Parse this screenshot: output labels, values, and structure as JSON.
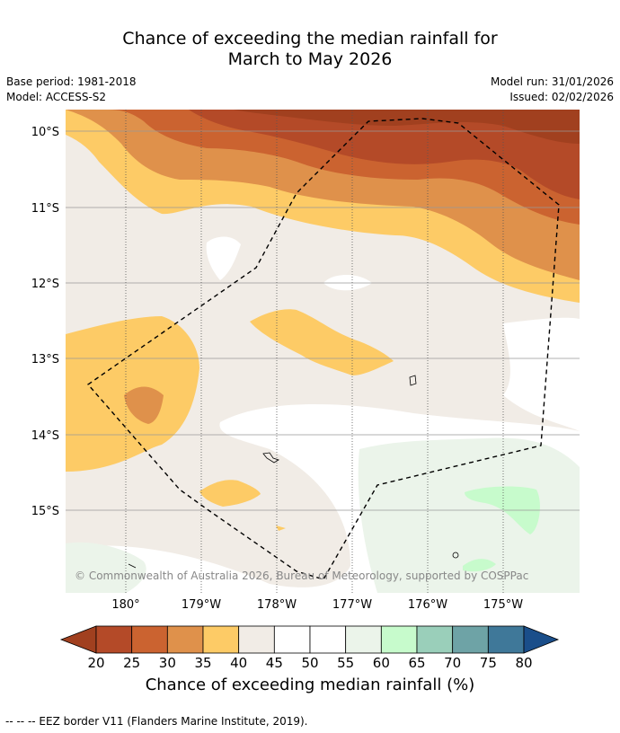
{
  "title_line1": "Chance of exceeding the median rainfall for",
  "title_line2": "March to May 2026",
  "base_period": "Base period: 1981-2018",
  "model": "Model: ACCESS-S2",
  "model_run": "Model run: 31/01/2026",
  "issued": "Issued: 02/02/2026",
  "lat_labels": [
    "10°S",
    "11°S",
    "12°S",
    "13°S",
    "14°S",
    "15°S"
  ],
  "lon_labels": [
    "180°",
    "179°W",
    "178°W",
    "177°W",
    "176°W",
    "175°W"
  ],
  "copyright": "© Commonwealth of Australia 2026, Bureau of Meteorology, supported by COSPPac",
  "colorbar": {
    "ticks": [
      "20",
      "25",
      "30",
      "35",
      "40",
      "45",
      "50",
      "55",
      "60",
      "65",
      "70",
      "75",
      "80"
    ],
    "colors": [
      "#a1401f",
      "#b44a28",
      "#cb6330",
      "#df914b",
      "#fdcb66",
      "#f1ece6",
      "#ffffff",
      "#ffffff",
      "#ebf4ea",
      "#c7fbcc",
      "#9acfba",
      "#6ea3a6",
      "#3f7899",
      "#1a4e8a"
    ],
    "title": "Chance of exceeding median rainfall (%)"
  },
  "footer": "--  --  -- EEZ border V11 (Flanders Marine Institute, 2019)."
}
